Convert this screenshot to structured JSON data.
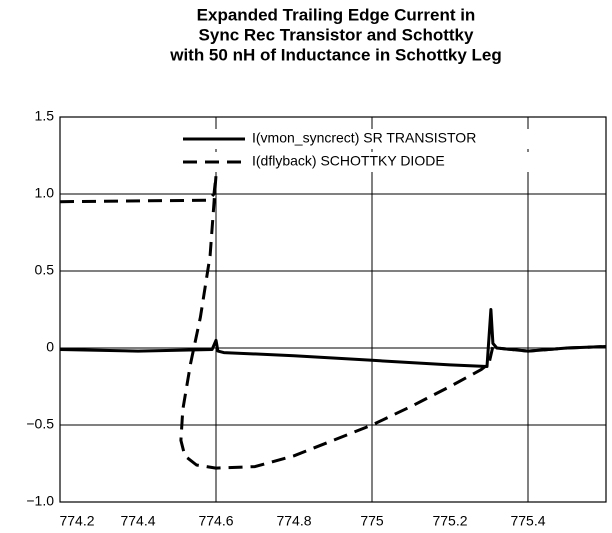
{
  "chart_data": {
    "type": "line",
    "title": [
      "Expanded Trailing Edge Current in",
      "Sync Rec Transistor and Schottky",
      "with 50 nH of Inductance in Schottky Leg"
    ],
    "xlim": [
      774.2,
      775.6
    ],
    "ylim": [
      -1.0,
      1.5
    ],
    "xticks": [
      774.2,
      774.4,
      774.6,
      774.8,
      775,
      775.2,
      775.4
    ],
    "yticks": [
      {
        "value": -1.0,
        "label": "−1.0"
      },
      {
        "value": -0.5,
        "label": "−0.5"
      },
      0,
      0.5,
      {
        "value": 1.0,
        "label": "1.0"
      },
      1.5
    ],
    "xgrid": [
      774.6,
      775,
      775.4
    ],
    "grid": true,
    "legend": "upper right",
    "series": [
      {
        "name": "I(vmon_syncrect) SR TRANSISTOR",
        "color": "#000000",
        "dash": false,
        "x": [
          774.2,
          774.4,
          774.59,
          774.6,
          774.605,
          774.62,
          774.8,
          775.0,
          775.2,
          775.295,
          775.305,
          775.31,
          775.32,
          775.4,
          775.5,
          775.6
        ],
        "values": [
          -0.01,
          -0.02,
          -0.01,
          0.05,
          -0.02,
          -0.03,
          -0.05,
          -0.08,
          -0.11,
          -0.12,
          0.25,
          0.03,
          0.0,
          -0.02,
          0.0,
          0.01
        ]
      },
      {
        "name": "I(dflyback) SCHOTTKY DIODE",
        "color": "#000000",
        "dash": true,
        "x": [
          774.2,
          774.58,
          774.595,
          774.6,
          774.585,
          774.56,
          774.535,
          774.515,
          774.51,
          774.52,
          774.55,
          774.6,
          774.7,
          774.8,
          774.9,
          775.0,
          775.1,
          775.2,
          775.28,
          775.3,
          775.31,
          775.32,
          775.4,
          775.5,
          775.6
        ],
        "values": [
          0.95,
          0.96,
          1.0,
          1.12,
          0.6,
          0.2,
          -0.1,
          -0.4,
          -0.6,
          -0.7,
          -0.76,
          -0.78,
          -0.77,
          -0.7,
          -0.6,
          -0.5,
          -0.38,
          -0.25,
          -0.14,
          -0.1,
          0.01,
          0.0,
          -0.02,
          0.0,
          0.01
        ]
      }
    ]
  }
}
